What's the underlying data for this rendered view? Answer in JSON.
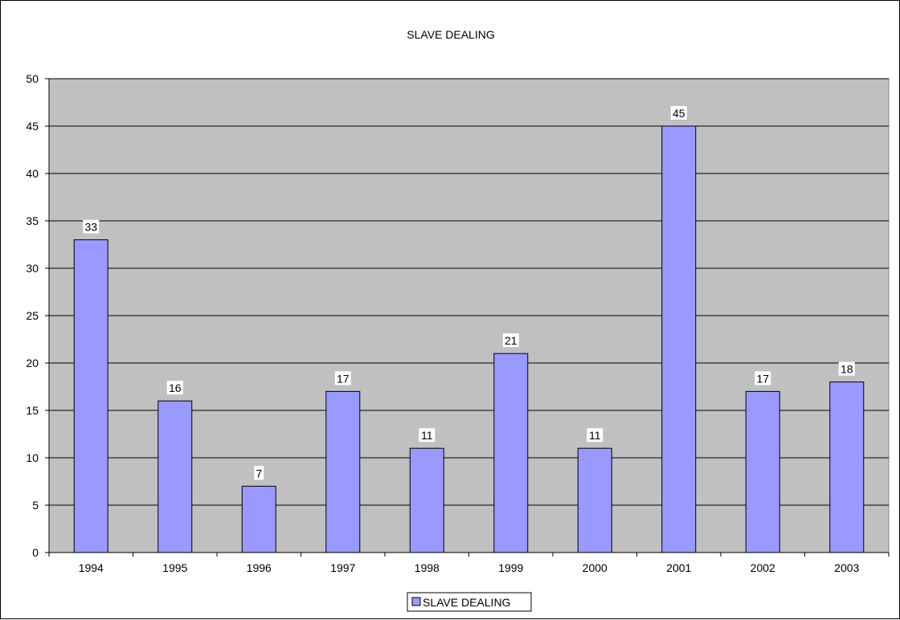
{
  "chart_data": {
    "type": "bar",
    "title": "SLAVE DEALING",
    "categories": [
      "1994",
      "1995",
      "1996",
      "1997",
      "1998",
      "1999",
      "2000",
      "2001",
      "2002",
      "2003"
    ],
    "series": [
      {
        "name": "SLAVE DEALING",
        "values": [
          33,
          16,
          7,
          17,
          11,
          21,
          11,
          45,
          17,
          18
        ],
        "color": "#9999ff"
      }
    ],
    "ylim": [
      0,
      50
    ],
    "yticks": [
      0,
      5,
      10,
      15,
      20,
      25,
      30,
      35,
      40,
      45,
      50
    ],
    "data_labels": true,
    "grid": true,
    "legend": "bottom",
    "plot_background": "#c0c0c0",
    "bar_outline": "#000000"
  }
}
